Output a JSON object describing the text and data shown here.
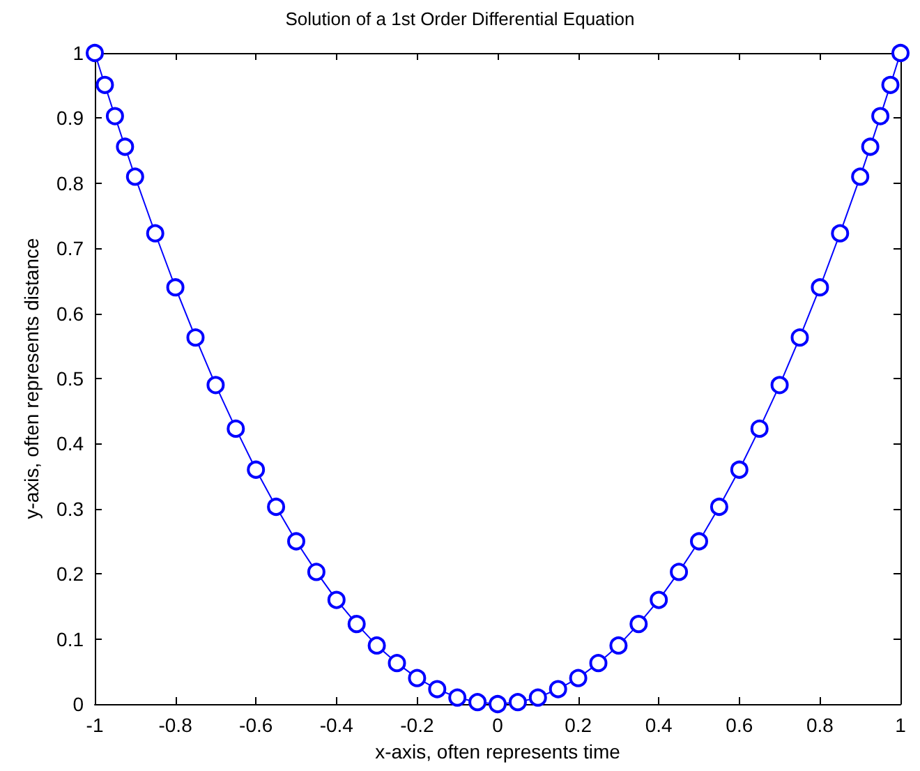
{
  "chart_data": {
    "type": "line",
    "title": "Solution of a 1st Order Differential Equation",
    "xlabel": "x-axis, often represents time",
    "ylabel": "y-axis, often represents distance",
    "x": [
      -1,
      -0.975,
      -0.95,
      -0.925,
      -0.9,
      -0.85,
      -0.8,
      -0.75,
      -0.7,
      -0.65,
      -0.6,
      -0.55,
      -0.5,
      -0.45,
      -0.4,
      -0.35,
      -0.3,
      -0.25,
      -0.2,
      -0.15,
      -0.1,
      -0.05,
      0,
      0.05,
      0.1,
      0.15,
      0.2,
      0.25,
      0.3,
      0.35,
      0.4,
      0.45,
      0.5,
      0.55,
      0.6,
      0.65,
      0.7,
      0.75,
      0.8,
      0.85,
      0.9,
      0.925,
      0.95,
      0.975,
      1
    ],
    "series": [
      {
        "color": "#0000ff",
        "values": [
          1,
          0.951,
          0.903,
          0.856,
          0.81,
          0.723,
          0.64,
          0.563,
          0.49,
          0.423,
          0.36,
          0.303,
          0.25,
          0.203,
          0.16,
          0.123,
          0.09,
          0.063,
          0.04,
          0.023,
          0.01,
          0.003,
          0,
          0.003,
          0.01,
          0.023,
          0.04,
          0.063,
          0.09,
          0.123,
          0.16,
          0.203,
          0.25,
          0.303,
          0.36,
          0.423,
          0.49,
          0.563,
          0.64,
          0.723,
          0.81,
          0.856,
          0.903,
          0.951,
          1
        ]
      }
    ],
    "xlim": [
      -1,
      1
    ],
    "xticks": [
      -1,
      -0.8,
      -0.6,
      -0.4,
      -0.2,
      0,
      0.2,
      0.4,
      0.6,
      0.8,
      1
    ],
    "ylim": [
      0,
      1
    ],
    "yticks": [
      0,
      0.1,
      0.2,
      0.3,
      0.4,
      0.5,
      0.6,
      0.7,
      0.8,
      0.9,
      1
    ],
    "grid": false,
    "marker": "circle",
    "line_style": "solid"
  }
}
